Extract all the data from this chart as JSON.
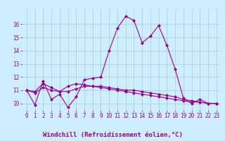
{
  "xlabel": "Windchill (Refroidissement éolien,°C)",
  "ylabel": "",
  "xlim": [
    -0.5,
    23.5
  ],
  "ylim": [
    9.5,
    17.2
  ],
  "yticks": [
    10,
    11,
    12,
    13,
    14,
    15,
    16
  ],
  "xticks": [
    0,
    1,
    2,
    3,
    4,
    5,
    6,
    7,
    8,
    9,
    10,
    11,
    12,
    13,
    14,
    15,
    16,
    17,
    18,
    19,
    20,
    21,
    22,
    23
  ],
  "line1_x": [
    0,
    1,
    2,
    3,
    4,
    5,
    6,
    7,
    8,
    9,
    10,
    11,
    12,
    13,
    14,
    15,
    16,
    17,
    18,
    19,
    20,
    21,
    22,
    23
  ],
  "line1_y": [
    11.0,
    9.9,
    11.7,
    10.3,
    10.7,
    9.7,
    10.5,
    11.8,
    11.9,
    12.0,
    14.0,
    15.7,
    16.6,
    16.3,
    14.6,
    15.1,
    15.9,
    14.4,
    12.6,
    10.4,
    10.0,
    10.3,
    10.0,
    10.0
  ],
  "line2_x": [
    0,
    1,
    2,
    3,
    4,
    5,
    6,
    7,
    8,
    9,
    10,
    11,
    12,
    13,
    14,
    15,
    16,
    17,
    18,
    19,
    20,
    21,
    22,
    23
  ],
  "line2_y": [
    11.0,
    10.9,
    11.5,
    11.2,
    10.9,
    11.3,
    11.5,
    11.4,
    11.3,
    11.2,
    11.1,
    11.0,
    10.9,
    10.8,
    10.7,
    10.6,
    10.5,
    10.4,
    10.3,
    10.2,
    10.1,
    10.1,
    10.0,
    10.0
  ],
  "line3_x": [
    0,
    1,
    2,
    3,
    4,
    5,
    6,
    7,
    8,
    9,
    10,
    11,
    12,
    13,
    14,
    15,
    16,
    17,
    18,
    19,
    20,
    21,
    22,
    23
  ],
  "line3_y": [
    11.0,
    10.8,
    11.2,
    11.0,
    10.9,
    10.9,
    11.1,
    11.3,
    11.3,
    11.3,
    11.2,
    11.1,
    11.0,
    11.0,
    10.9,
    10.8,
    10.7,
    10.6,
    10.5,
    10.3,
    10.2,
    10.1,
    10.0,
    10.0
  ],
  "line_color": "#990099",
  "marker": "D",
  "markersize": 2.0,
  "linewidth": 0.8,
  "bg_color": "#cceeff",
  "grid_color": "#aacccc",
  "tick_label_color": "#990099",
  "axis_label_color": "#990099",
  "tick_fontsize": 5.5,
  "xlabel_fontsize": 6.5,
  "xlabel_fontweight": "bold"
}
